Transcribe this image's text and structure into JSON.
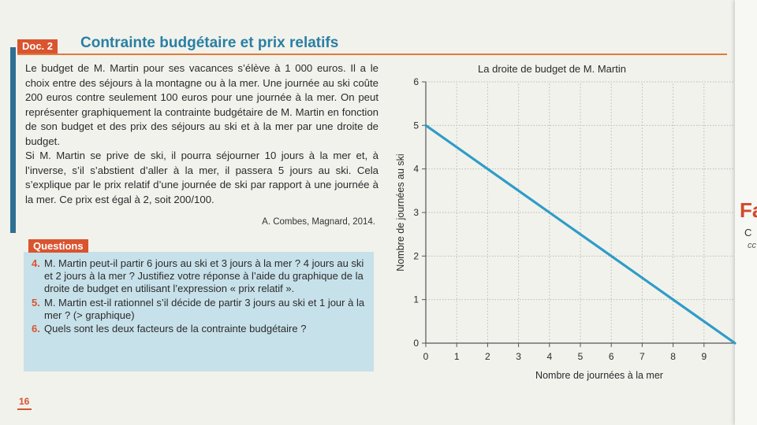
{
  "doc": {
    "tag": "Doc. 2",
    "title": "Contrainte budgétaire et prix relatifs",
    "paragraph1": "Le budget de M. Martin pour ses vacances s’élève à 1 000 euros. Il a le choix entre des séjours à la montagne ou à la mer. Une journée au ski coûte 200 euros contre seulement 100 euros pour une journée à la mer. On peut représenter graphiquement la contrainte budgétaire de M. Martin en fonction de son budget et des prix des séjours au ski et à la mer par une droite de budget.",
    "paragraph2": "Si M. Martin se prive de ski, il pourra séjourner 10 jours à la mer et, à l’inverse, s’il s’abstient d’aller à la mer, il passera 5 jours au ski. Cela s’explique par le prix relatif d’une journée de ski par rapport à une journée à la mer. Ce prix est égal à 2, soit 200/100.",
    "source": "A. Combes, Magnard, 2014."
  },
  "questions": {
    "tag": "Questions",
    "items": [
      {
        "num": "4.",
        "text": "M. Martin peut-il partir 6 jours au ski et 3 jours à la mer ? 4 jours au ski et 2 jours à la mer ? Justifiez votre réponse à l’aide du graphique de la droite de budget en utilisant l’expression « prix relatif »."
      },
      {
        "num": "5.",
        "text": "M. Martin est-il rationnel s’il décide de partir 3 jours au ski et 1 jour à la mer ? (> graphique)"
      },
      {
        "num": "6.",
        "text": "Quels sont les deux facteurs de la contrainte budgétaire ?"
      }
    ]
  },
  "page_number": "16",
  "right_page": {
    "heading_fragment": "Fa",
    "line1": "C",
    "line2": "cc"
  },
  "colors": {
    "accent": "#d9542f",
    "title_blue": "#2a7fa3",
    "line": "#2f9cc8"
  },
  "chart_data": {
    "type": "line",
    "title": "La droite de budget de M. Martin",
    "xlabel": "Nombre de journées à la mer",
    "ylabel": "Nombre de journées au ski",
    "xlim": [
      0,
      10
    ],
    "ylim": [
      0,
      6
    ],
    "x_ticks": [
      0,
      1,
      2,
      3,
      4,
      5,
      6,
      7,
      8,
      9
    ],
    "y_ticks": [
      0,
      1,
      2,
      3,
      4,
      5,
      6
    ],
    "grid": true,
    "series": [
      {
        "x": [
          0,
          1,
          2,
          3,
          4,
          5,
          6,
          7,
          8,
          9,
          10
        ],
        "y": [
          5,
          4.5,
          4,
          3.5,
          3,
          2.5,
          2,
          1.5,
          1,
          0.5,
          0
        ]
      }
    ]
  }
}
